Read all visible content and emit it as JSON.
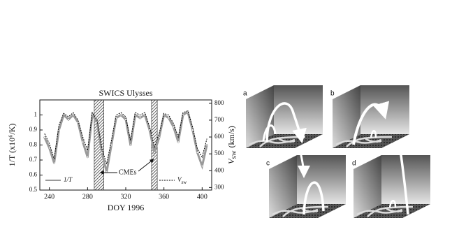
{
  "chart_data": {
    "type": "line",
    "title": "SWICS   Ulysses",
    "x_label": "DOY 1996",
    "y_label": "1/T (x10⁶/K)",
    "y2_label": {
      "main": "V",
      "sub": "SW",
      "unit": "(km/s)"
    },
    "annotation": "CMEs",
    "x": [
      235,
      240,
      245,
      250,
      255,
      260,
      265,
      270,
      275,
      280,
      285,
      290,
      295,
      300,
      305,
      310,
      315,
      320,
      325,
      330,
      335,
      340,
      345,
      350,
      355,
      360,
      365,
      370,
      375,
      380,
      385,
      390,
      395,
      400,
      405
    ],
    "series": [
      {
        "name": "1/T",
        "color": "#9a9a9a",
        "values": [
          0.85,
          0.78,
          0.68,
          0.9,
          1.0,
          0.97,
          1.0,
          0.95,
          0.82,
          0.72,
          1.0,
          0.95,
          0.75,
          0.62,
          0.8,
          0.98,
          1.0,
          0.97,
          0.8,
          1.0,
          0.98,
          1.0,
          0.9,
          0.75,
          0.85,
          1.0,
          0.98,
          0.92,
          0.82,
          1.0,
          1.02,
          0.9,
          0.75,
          0.66,
          0.8
        ]
      },
      {
        "name": "V",
        "name_sub": "sw",
        "color": "#000000",
        "axis": "y2",
        "values": [
          620,
          560,
          470,
          670,
          740,
          720,
          745,
          700,
          600,
          520,
          745,
          700,
          530,
          440,
          580,
          730,
          745,
          720,
          580,
          745,
          730,
          745,
          660,
          540,
          620,
          740,
          730,
          680,
          600,
          745,
          755,
          660,
          530,
          480,
          590
        ]
      }
    ],
    "cme_spans": [
      [
        287,
        297
      ],
      [
        347,
        353
      ]
    ],
    "xlim": [
      230,
      410
    ],
    "xticks": [
      240,
      280,
      320,
      360,
      400
    ],
    "ylim": [
      0.5,
      1.1
    ],
    "yticks": [
      0.5,
      0.6,
      0.7,
      0.8,
      0.9,
      1
    ],
    "y2lim": [
      285,
      820
    ],
    "y2ticks": [
      300,
      400,
      500,
      600,
      700,
      800
    ]
  },
  "panels": [
    "a",
    "b",
    "c",
    "d"
  ]
}
